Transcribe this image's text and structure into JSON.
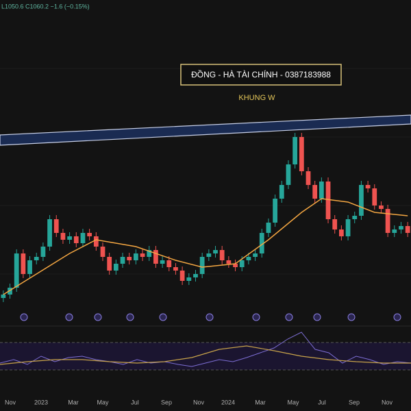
{
  "chart_data": {
    "type": "candlestick",
    "header": "L1050.6  C1060.2  −1.6 (−0.15%)",
    "banner": "ĐỒNG - HÀ TÀI CHÍNH - 0387183988",
    "subtitle": "KHUNG W",
    "x_labels": [
      "Nov",
      "2023",
      "Mar",
      "May",
      "Jul",
      "Sep",
      "Nov",
      "2024",
      "Mar",
      "May",
      "Jul",
      "Sep",
      "Nov"
    ],
    "ylim": [
      898,
      1462
    ],
    "first_open": 940,
    "close": [
      946,
      958,
      1018,
      982,
      1006,
      1012,
      1030,
      1078,
      1054,
      1042,
      1048,
      1036,
      1054,
      1048,
      1030,
      1012,
      988,
      1000,
      1012,
      1006,
      1018,
      1012,
      1024,
      1000,
      1006,
      994,
      988,
      970,
      976,
      982,
      1012,
      1018,
      1024,
      1006,
      1000,
      994,
      1006,
      1012,
      1018,
      1054,
      1072,
      1114,
      1138,
      1174,
      1222,
      1162,
      1138,
      1114,
      1144,
      1078,
      1060,
      1048,
      1078,
      1084,
      1138,
      1132,
      1102,
      1096,
      1054,
      1060,
      1066,
      1054
    ],
    "up_color": "#26a69a",
    "down_color": "#ef5350",
    "ma": {
      "color": "#f5a742",
      "x": [
        0,
        5,
        10,
        14,
        20,
        26,
        30,
        35,
        40,
        45,
        48,
        52,
        56,
        61
      ],
      "values": [
        946,
        982,
        1018,
        1042,
        1030,
        1006,
        994,
        1000,
        1042,
        1090,
        1114,
        1108,
        1090,
        1084
      ]
    },
    "rsi": {
      "ylim": [
        0,
        90
      ],
      "levels": [
        70,
        30
      ],
      "color": "#7e6fd6",
      "values": [
        40,
        45,
        38,
        50,
        42,
        48,
        50,
        45,
        42,
        38,
        45,
        40,
        42,
        38,
        35,
        40,
        45,
        42,
        48,
        55,
        62,
        75,
        85,
        60,
        55,
        40,
        50,
        45,
        38,
        42,
        40
      ],
      "ma_color": "#c9a44a",
      "ma": [
        38,
        42,
        45,
        45,
        42,
        40,
        42,
        48,
        60,
        65,
        58,
        50,
        45,
        42,
        40,
        40
      ]
    }
  }
}
